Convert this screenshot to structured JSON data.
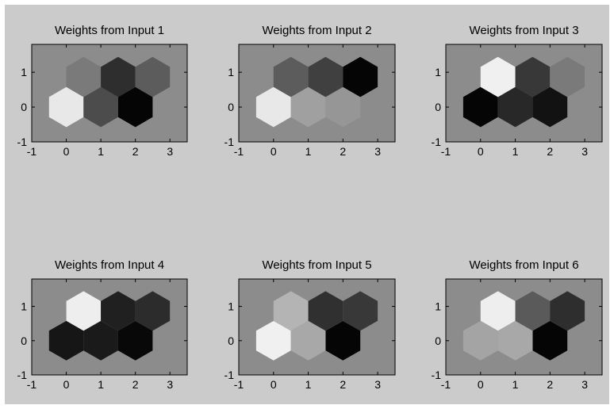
{
  "figure_background": "#cbcbcb",
  "axes_background": "#8c8c8c",
  "chart_data": [
    {
      "type": "heatmap",
      "subtype": "hexagonal-som-weight-plane",
      "title": "Weights from Input 1",
      "xlim": [
        -1,
        3.5
      ],
      "ylim": [
        -1,
        1.8
      ],
      "xticks": [
        "-1",
        "0",
        "1",
        "2",
        "3"
      ],
      "yticks": [
        "-1",
        "0",
        "1"
      ],
      "cells": [
        {
          "x": 0,
          "y": 0,
          "value": "#e8e8e8"
        },
        {
          "x": 1,
          "y": 0,
          "value": "#4c4c4c"
        },
        {
          "x": 2,
          "y": 0,
          "value": "#050505"
        },
        {
          "x": 0.5,
          "y": 0.866,
          "value": "#7a7a7a"
        },
        {
          "x": 1.5,
          "y": 0.866,
          "value": "#2e2e2e"
        },
        {
          "x": 2.5,
          "y": 0.866,
          "value": "#5c5c5c"
        }
      ]
    },
    {
      "type": "heatmap",
      "subtype": "hexagonal-som-weight-plane",
      "title": "Weights from Input 2",
      "xlim": [
        -1,
        3.5
      ],
      "ylim": [
        -1,
        1.8
      ],
      "xticks": [
        "-1",
        "0",
        "1",
        "2",
        "3"
      ],
      "yticks": [
        "-1",
        "0",
        "1"
      ],
      "cells": [
        {
          "x": 0,
          "y": 0,
          "value": "#e8e8e8"
        },
        {
          "x": 1,
          "y": 0,
          "value": "#a0a0a0"
        },
        {
          "x": 2,
          "y": 0,
          "value": "#969696"
        },
        {
          "x": 0.5,
          "y": 0.866,
          "value": "#5c5c5c"
        },
        {
          "x": 1.5,
          "y": 0.866,
          "value": "#404040"
        },
        {
          "x": 2.5,
          "y": 0.866,
          "value": "#050505"
        }
      ]
    },
    {
      "type": "heatmap",
      "subtype": "hexagonal-som-weight-plane",
      "title": "Weights from Input 3",
      "xlim": [
        -1,
        3.5
      ],
      "ylim": [
        -1,
        1.8
      ],
      "xticks": [
        "-1",
        "0",
        "1",
        "2",
        "3"
      ],
      "yticks": [
        "-1",
        "0",
        "1"
      ],
      "cells": [
        {
          "x": 0,
          "y": 0,
          "value": "#050505"
        },
        {
          "x": 1,
          "y": 0,
          "value": "#282828"
        },
        {
          "x": 2,
          "y": 0,
          "value": "#121212"
        },
        {
          "x": 0.5,
          "y": 0.866,
          "value": "#f0f0f0"
        },
        {
          "x": 1.5,
          "y": 0.866,
          "value": "#383838"
        },
        {
          "x": 2.5,
          "y": 0.866,
          "value": "#7a7a7a"
        }
      ]
    },
    {
      "type": "heatmap",
      "subtype": "hexagonal-som-weight-plane",
      "title": "Weights from Input 4",
      "xlim": [
        -1,
        3.5
      ],
      "ylim": [
        -1,
        1.8
      ],
      "xticks": [
        "-1",
        "0",
        "1",
        "2",
        "3"
      ],
      "yticks": [
        "-1",
        "0",
        "1"
      ],
      "cells": [
        {
          "x": 0,
          "y": 0,
          "value": "#161616"
        },
        {
          "x": 1,
          "y": 0,
          "value": "#1a1a1a"
        },
        {
          "x": 2,
          "y": 0,
          "value": "#080808"
        },
        {
          "x": 0.5,
          "y": 0.866,
          "value": "#eeeeee"
        },
        {
          "x": 1.5,
          "y": 0.866,
          "value": "#202020"
        },
        {
          "x": 2.5,
          "y": 0.866,
          "value": "#2c2c2c"
        }
      ]
    },
    {
      "type": "heatmap",
      "subtype": "hexagonal-som-weight-plane",
      "title": "Weights from Input 5",
      "xlim": [
        -1,
        3.5
      ],
      "ylim": [
        -1,
        1.8
      ],
      "xticks": [
        "-1",
        "0",
        "1",
        "2",
        "3"
      ],
      "yticks": [
        "-1",
        "0",
        "1"
      ],
      "cells": [
        {
          "x": 0,
          "y": 0,
          "value": "#f0f0f0"
        },
        {
          "x": 1,
          "y": 0,
          "value": "#a8a8a8"
        },
        {
          "x": 2,
          "y": 0,
          "value": "#050505"
        },
        {
          "x": 0.5,
          "y": 0.866,
          "value": "#b4b4b4"
        },
        {
          "x": 1.5,
          "y": 0.866,
          "value": "#303030"
        },
        {
          "x": 2.5,
          "y": 0.866,
          "value": "#383838"
        }
      ]
    },
    {
      "type": "heatmap",
      "subtype": "hexagonal-som-weight-plane",
      "title": "Weights from Input 6",
      "xlim": [
        -1,
        3.5
      ],
      "ylim": [
        -1,
        1.8
      ],
      "xticks": [
        "-1",
        "0",
        "1",
        "2",
        "3"
      ],
      "yticks": [
        "-1",
        "0",
        "1"
      ],
      "cells": [
        {
          "x": 0,
          "y": 0,
          "value": "#a4a4a4"
        },
        {
          "x": 1,
          "y": 0,
          "value": "#a8a8a8"
        },
        {
          "x": 2,
          "y": 0,
          "value": "#050505"
        },
        {
          "x": 0.5,
          "y": 0.866,
          "value": "#eeeeee"
        },
        {
          "x": 1.5,
          "y": 0.866,
          "value": "#5a5a5a"
        },
        {
          "x": 2.5,
          "y": 0.866,
          "value": "#2e2e2e"
        }
      ]
    }
  ]
}
